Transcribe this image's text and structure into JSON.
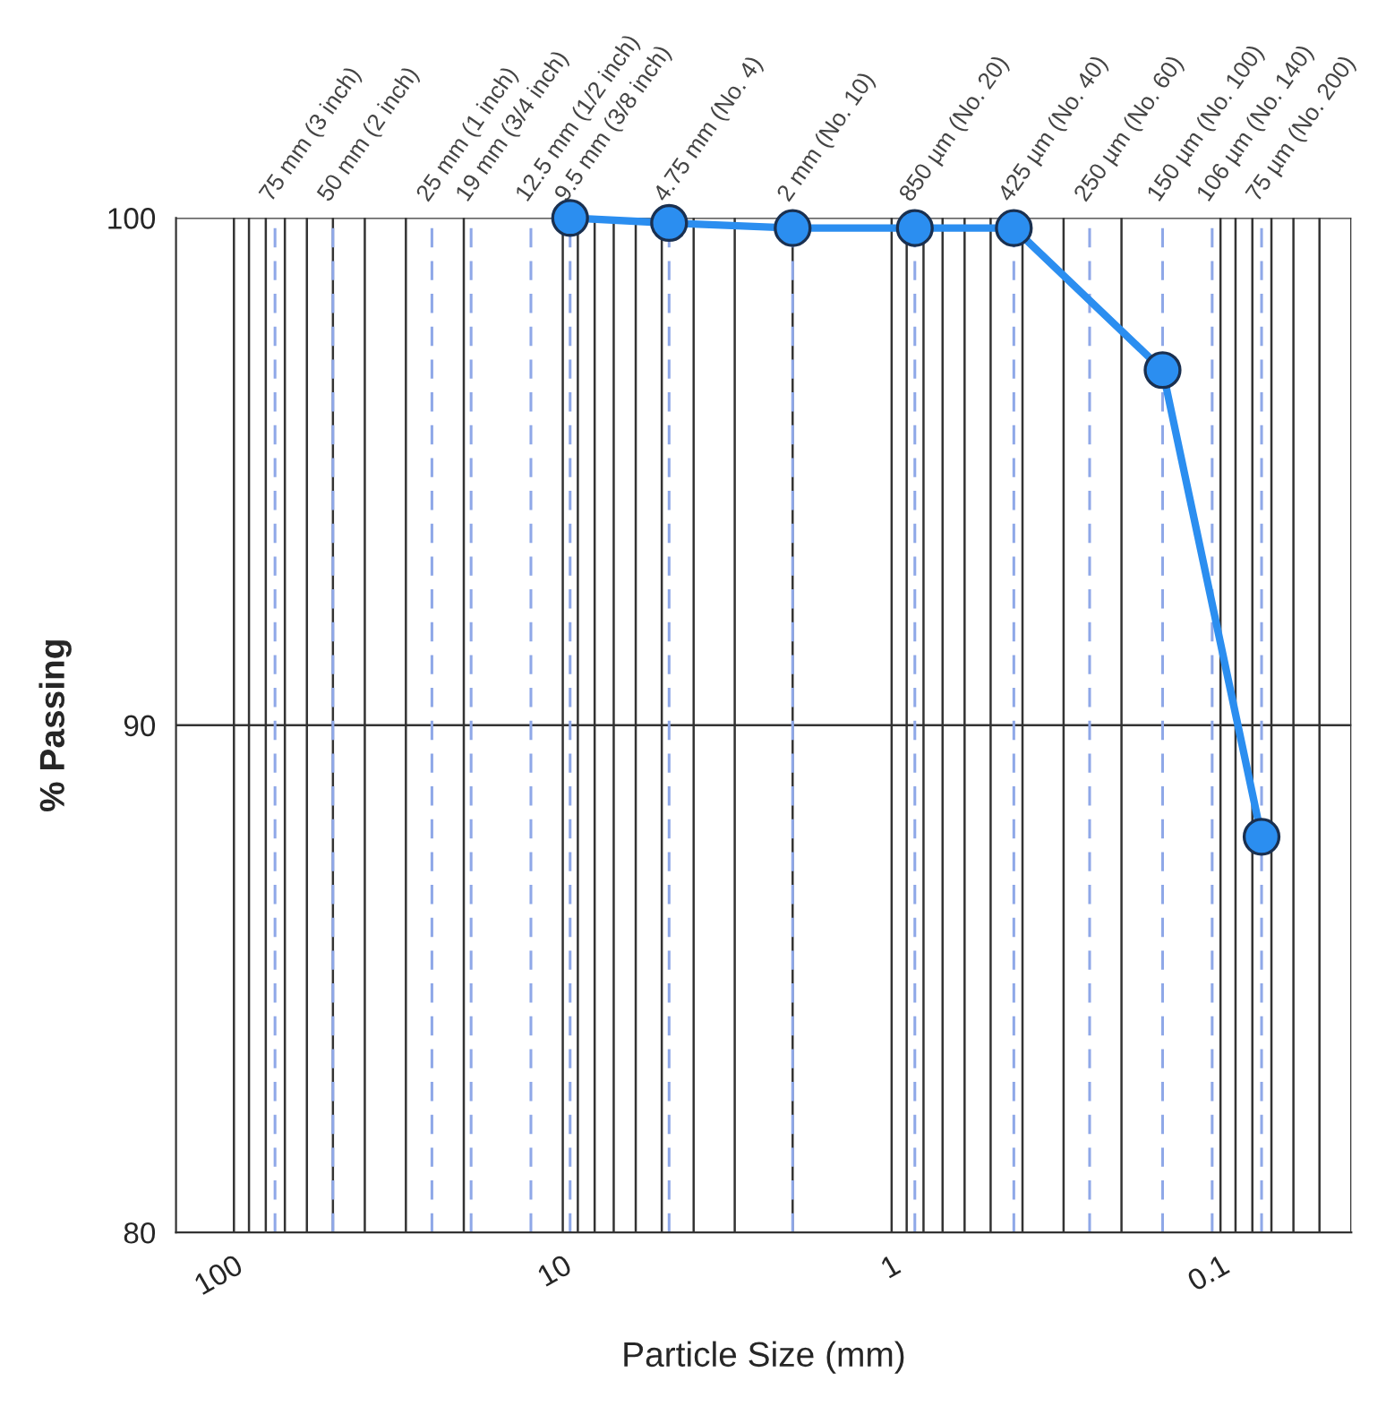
{
  "chart_data": {
    "type": "line",
    "xlabel": "Particle Size (mm)",
    "ylabel": "% Passing",
    "x": [
      9.5,
      4.75,
      2,
      0.85,
      0.425,
      0.15,
      0.075
    ],
    "series": [
      {
        "color": "#2b8ef0",
        "values": [
          100,
          99.9,
          99.8,
          99.8,
          99.8,
          97,
          87.8
        ]
      }
    ],
    "marker": "circle",
    "line_style": "solid",
    "log": "x",
    "grid": true,
    "legend": false,
    "xlim": [
      150,
      0.04
    ],
    "xticks": [
      100,
      10,
      1,
      0.1
    ],
    "ylim": [
      80,
      100
    ],
    "yticks": [
      80,
      90,
      100
    ],
    "ref_lines": [
      {
        "axis": "x",
        "value": 75,
        "label": "75 mm (3 inch)",
        "color": "#8fa8e8",
        "line_style": "dashed"
      },
      {
        "axis": "x",
        "value": 50,
        "label": "50 mm (2 inch)",
        "color": "#8fa8e8",
        "line_style": "dashed"
      },
      {
        "axis": "x",
        "value": 25,
        "label": "25 mm (1 inch)",
        "color": "#8fa8e8",
        "line_style": "dashed"
      },
      {
        "axis": "x",
        "value": 19,
        "label": "19 mm (3/4 inch)",
        "color": "#8fa8e8",
        "line_style": "dashed"
      },
      {
        "axis": "x",
        "value": 12.5,
        "label": "12.5 mm (1/2 inch)",
        "color": "#8fa8e8",
        "line_style": "dashed"
      },
      {
        "axis": "x",
        "value": 9.5,
        "label": "9.5 mm (3/8 inch)",
        "color": "#8fa8e8",
        "line_style": "dashed"
      },
      {
        "axis": "x",
        "value": 4.75,
        "label": "4.75 mm (No. 4)",
        "color": "#8fa8e8",
        "line_style": "dashed"
      },
      {
        "axis": "x",
        "value": 2,
        "label": "2 mm (No. 10)",
        "color": "#8fa8e8",
        "line_style": "dashed"
      },
      {
        "axis": "x",
        "value": 0.85,
        "label": "850 µm (No. 20)",
        "color": "#8fa8e8",
        "line_style": "dashed"
      },
      {
        "axis": "x",
        "value": 0.425,
        "label": "425 µm (No. 40)",
        "color": "#8fa8e8",
        "line_style": "dashed"
      },
      {
        "axis": "x",
        "value": 0.25,
        "label": "250 µm (No. 60)",
        "color": "#8fa8e8",
        "line_style": "dashed"
      },
      {
        "axis": "x",
        "value": 0.15,
        "label": "150 µm (No. 100)",
        "color": "#8fa8e8",
        "line_style": "dashed"
      },
      {
        "axis": "x",
        "value": 0.106,
        "label": "106 µm (No. 140)",
        "color": "#8fa8e8",
        "line_style": "dashed"
      },
      {
        "axis": "x",
        "value": 0.075,
        "label": "75 µm (No. 200)",
        "color": "#8fa8e8",
        "line_style": "dashed"
      }
    ]
  }
}
